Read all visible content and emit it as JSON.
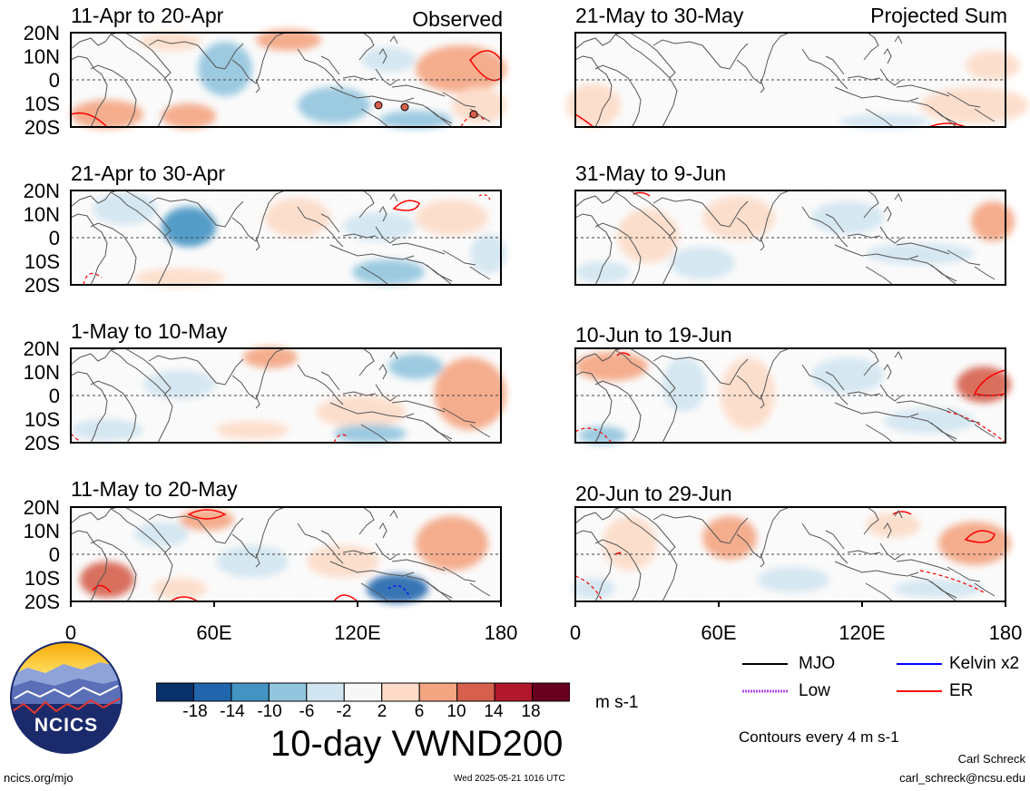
{
  "header": {
    "left_label": "Observed",
    "right_label": "Projected Sum"
  },
  "panels_left": [
    {
      "title": "11-Apr to 20-Apr"
    },
    {
      "title": "21-Apr to 30-Apr"
    },
    {
      "title": "1-May to 10-May"
    },
    {
      "title": "11-May to 20-May"
    }
  ],
  "panels_right": [
    {
      "title": "21-May to 30-May"
    },
    {
      "title": "31-May to 9-Jun"
    },
    {
      "title": "10-Jun to 19-Jun"
    },
    {
      "title": "20-Jun to 29-Jun"
    }
  ],
  "lat_labels": [
    "20N",
    "10N",
    "0",
    "10S",
    "20S"
  ],
  "lon_labels": [
    "0",
    "60E",
    "120E",
    "180"
  ],
  "colorbar": {
    "ticks": [
      "-18",
      "-14",
      "-10",
      "-6",
      "-2",
      "2",
      "6",
      "10",
      "14",
      "18"
    ],
    "units": "m s-1",
    "colors": [
      "#08306b",
      "#2166ac",
      "#4393c3",
      "#92c5de",
      "#d1e5f0",
      "#f7f7f7",
      "#fddbc7",
      "#f4a582",
      "#d6604d",
      "#b2182b",
      "#67001f"
    ]
  },
  "main_title": "10-day VWND200",
  "legend": {
    "mjo": "MJO",
    "kelvin": "Kelvin x2",
    "low": "Low",
    "er": "ER",
    "contours_note": "Contours every 4 m s-1",
    "colors": {
      "mjo": "#000000",
      "kelvin": "#0000ff",
      "low": "#b452e6",
      "er": "#ff0000"
    }
  },
  "logo": {
    "text": "NCICS"
  },
  "footer": {
    "url": "ncics.org/mjo",
    "timestamp": "Wed 2025-05-21 1016 UTC",
    "author": "Carl Schreck",
    "email": "carl_schreck@ncsu.edu"
  }
}
